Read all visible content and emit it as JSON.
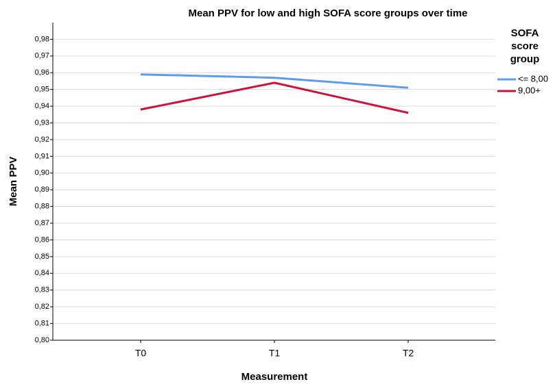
{
  "chart_data": {
    "type": "line",
    "title": "Mean PPV for low and high SOFA score groups over time",
    "x_label": "Measurement",
    "y_label": "Mean PPV",
    "legend_title": [
      "SOFA",
      "score",
      "group"
    ],
    "categories": [
      "T0",
      "T1",
      "T2"
    ],
    "series": [
      {
        "name": "<= 8,00",
        "color": "#5b9bf0",
        "values": [
          0.959,
          0.957,
          0.951
        ]
      },
      {
        "name": "9,00+",
        "color": "#d0103a",
        "values": [
          0.938,
          0.954,
          0.936
        ]
      }
    ],
    "ylim": [
      0.8,
      0.99
    ],
    "yticks": [
      {
        "value": 0.8,
        "label": "0,80"
      },
      {
        "value": 0.81,
        "label": "0,81"
      },
      {
        "value": 0.82,
        "label": "0,82"
      },
      {
        "value": 0.83,
        "label": "0,83"
      },
      {
        "value": 0.84,
        "label": "0,84"
      },
      {
        "value": 0.85,
        "label": "0,85"
      },
      {
        "value": 0.86,
        "label": "0,86"
      },
      {
        "value": 0.87,
        "label": "0,87"
      },
      {
        "value": 0.88,
        "label": "0,88"
      },
      {
        "value": 0.89,
        "label": "0,89"
      },
      {
        "value": 0.9,
        "label": "0,90"
      },
      {
        "value": 0.91,
        "label": "0,91"
      },
      {
        "value": 0.92,
        "label": "0,92"
      },
      {
        "value": 0.93,
        "label": "0,93"
      },
      {
        "value": 0.94,
        "label": "0,94"
      },
      {
        "value": 0.95,
        "label": "0,95"
      },
      {
        "value": 0.96,
        "label": "0,96"
      },
      {
        "value": 0.97,
        "label": "0,97"
      },
      {
        "value": 0.98,
        "label": "0,98"
      }
    ],
    "grid": true
  }
}
